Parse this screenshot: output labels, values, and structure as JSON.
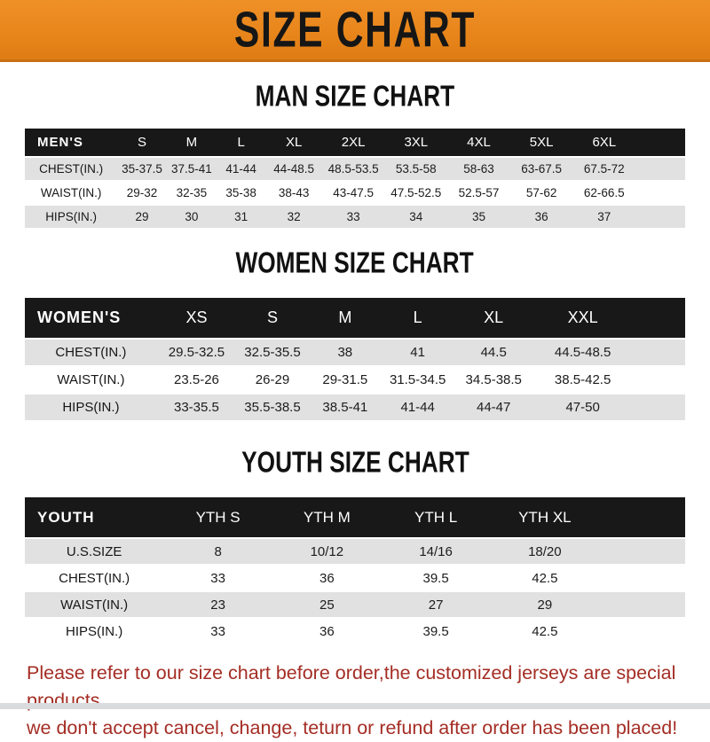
{
  "banner": {
    "title": "SIZE CHART",
    "bg_color": "#E8861C",
    "text_color": "#161616"
  },
  "colors": {
    "header_bar": "#181818",
    "row_gray": "#E1E1E1",
    "row_white": "#FFFFFF",
    "note_red": "#A42D24"
  },
  "sections": [
    {
      "id": "men",
      "title": "MAN SIZE CHART",
      "header_label": "MEN'S",
      "sizes": [
        "S",
        "M",
        "L",
        "XL",
        "2XL",
        "3XL",
        "4XL",
        "5XL",
        "6XL"
      ],
      "rows": [
        {
          "label": "CHEST(IN.)",
          "values": [
            "35-37.5",
            "37.5-41",
            "41-44",
            "44-48.5",
            "48.5-53.5",
            "53.5-58",
            "58-63",
            "63-67.5",
            "67.5-72"
          ]
        },
        {
          "label": "WAIST(IN.)",
          "values": [
            "29-32",
            "32-35",
            "35-38",
            "38-43",
            "43-47.5",
            "47.5-52.5",
            "52.5-57",
            "57-62",
            "62-66.5"
          ]
        },
        {
          "label": "HIPS(IN.)",
          "values": [
            "29",
            "30",
            "31",
            "32",
            "33",
            "34",
            "35",
            "36",
            "37"
          ]
        }
      ]
    },
    {
      "id": "women",
      "title": "WOMEN SIZE CHART",
      "header_label": "WOMEN'S",
      "sizes": [
        "XS",
        "S",
        "M",
        "L",
        "XL",
        "XXL"
      ],
      "rows": [
        {
          "label": "CHEST(IN.)",
          "values": [
            "29.5-32.5",
            "32.5-35.5",
            "38",
            "41",
            "44.5",
            "44.5-48.5"
          ]
        },
        {
          "label": "WAIST(IN.)",
          "values": [
            "23.5-26",
            "26-29",
            "29-31.5",
            "31.5-34.5",
            "34.5-38.5",
            "38.5-42.5"
          ]
        },
        {
          "label": "HIPS(IN.)",
          "values": [
            "33-35.5",
            "35.5-38.5",
            "38.5-41",
            "41-44",
            "44-47",
            "47-50"
          ]
        }
      ]
    },
    {
      "id": "youth",
      "title": "YOUTH SIZE CHART",
      "header_label": "YOUTH",
      "sizes": [
        "YTH S",
        "YTH M",
        "YTH L",
        "YTH XL"
      ],
      "rows": [
        {
          "label": "U.S.SIZE",
          "values": [
            "8",
            "10/12",
            "14/16",
            "18/20"
          ]
        },
        {
          "label": "CHEST(IN.)",
          "values": [
            "33",
            "36",
            "39.5",
            "42.5"
          ]
        },
        {
          "label": "WAIST(IN.)",
          "values": [
            "23",
            "25",
            "27",
            "29"
          ]
        },
        {
          "label": "HIPS(IN.)",
          "values": [
            "33",
            "36",
            "39.5",
            "42.5"
          ]
        }
      ]
    }
  ],
  "note": {
    "line1": "Please refer to our size chart before order,the customized jerseys are special products,",
    "line2": "we don't accept cancel, change, teturn or refund after order has been placed!"
  }
}
